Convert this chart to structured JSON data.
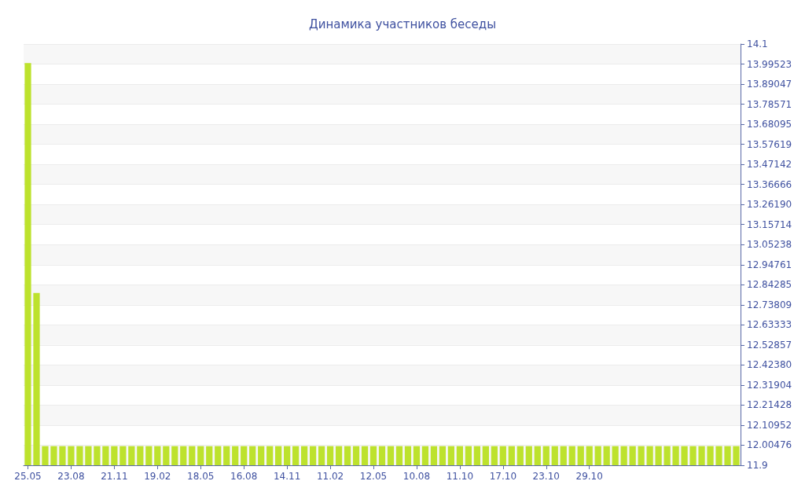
{
  "chart_data": {
    "type": "bar",
    "title": "Динамика участников беседы",
    "categories": [
      "25.05",
      null,
      null,
      null,
      null,
      "23.08",
      null,
      null,
      null,
      null,
      "21.11",
      null,
      null,
      null,
      null,
      "19.02",
      null,
      null,
      null,
      null,
      "18.05",
      null,
      null,
      null,
      null,
      "16.08",
      null,
      null,
      null,
      null,
      "14.11",
      null,
      null,
      null,
      null,
      "11.02",
      null,
      null,
      null,
      null,
      "12.05",
      null,
      null,
      null,
      null,
      "10.08",
      null,
      null,
      null,
      null,
      "11.10",
      null,
      null,
      null,
      null,
      "17.10",
      null,
      null,
      null,
      null,
      "23.10",
      null,
      null,
      null,
      null,
      "29.10",
      null,
      null,
      null,
      null,
      null,
      null,
      null,
      null,
      null,
      null,
      null,
      null,
      null,
      null,
      null,
      null,
      null
    ],
    "values": [
      14.0,
      12.8,
      12.0,
      12.0,
      12.0,
      12.0,
      12.0,
      12.0,
      12.0,
      12.0,
      12.0,
      12.0,
      12.0,
      12.0,
      12.0,
      12.0,
      12.0,
      12.0,
      12.0,
      12.0,
      12.0,
      12.0,
      12.0,
      12.0,
      12.0,
      12.0,
      12.0,
      12.0,
      12.0,
      12.0,
      12.0,
      12.0,
      12.0,
      12.0,
      12.0,
      12.0,
      12.0,
      12.0,
      12.0,
      12.0,
      12.0,
      12.0,
      12.0,
      12.0,
      12.0,
      12.0,
      12.0,
      12.0,
      12.0,
      12.0,
      12.0,
      12.0,
      12.0,
      12.0,
      12.0,
      12.0,
      12.0,
      12.0,
      12.0,
      12.0,
      12.0,
      12.0,
      12.0,
      12.0,
      12.0,
      12.0,
      12.0,
      12.0,
      12.0,
      12.0,
      12.0,
      12.0,
      12.0,
      12.0,
      12.0,
      12.0,
      12.0,
      12.0,
      12.0,
      12.0,
      12.0,
      12.0,
      12.0
    ],
    "color": "#bde22d",
    "ylim": [
      11.9,
      14.1
    ],
    "yticks": [
      11.9,
      {
        "value": 12.00476,
        "label": "12.00476"
      },
      {
        "value": 12.10952,
        "label": "12.10952"
      },
      {
        "value": 12.21428,
        "label": "12.21428"
      },
      {
        "value": 12.31904,
        "label": "12.31904"
      },
      {
        "value": 12.4238,
        "label": "12.42380"
      },
      {
        "value": 12.52857,
        "label": "12.52857"
      },
      {
        "value": 12.63333,
        "label": "12.63333"
      },
      {
        "value": 12.73809,
        "label": "12.73809"
      },
      {
        "value": 12.84285,
        "label": "12.84285"
      },
      {
        "value": 12.94761,
        "label": "12.94761"
      },
      {
        "value": 13.05238,
        "label": "13.05238"
      },
      {
        "value": 13.15714,
        "label": "13.15714"
      },
      {
        "value": 13.2619,
        "label": "13.26190"
      },
      {
        "value": 13.36666,
        "label": "13.36666"
      },
      {
        "value": 13.47142,
        "label": "13.47142"
      },
      {
        "value": 13.57619,
        "label": "13.57619"
      },
      {
        "value": 13.68095,
        "label": "13.68095"
      },
      {
        "value": 13.78571,
        "label": "13.78571"
      },
      {
        "value": 13.89047,
        "label": "13.89047"
      },
      {
        "value": 13.99523,
        "label": "13.99523"
      },
      14.1
    ],
    "grid": "y"
  }
}
